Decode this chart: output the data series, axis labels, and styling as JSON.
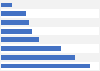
{
  "values": [
    635,
    530,
    430,
    270,
    220,
    200,
    175,
    80
  ],
  "bar_color": "#4472c4",
  "background_color": "#f2f2f2",
  "bar_height": 0.55,
  "ylim": [
    0,
    700
  ]
}
